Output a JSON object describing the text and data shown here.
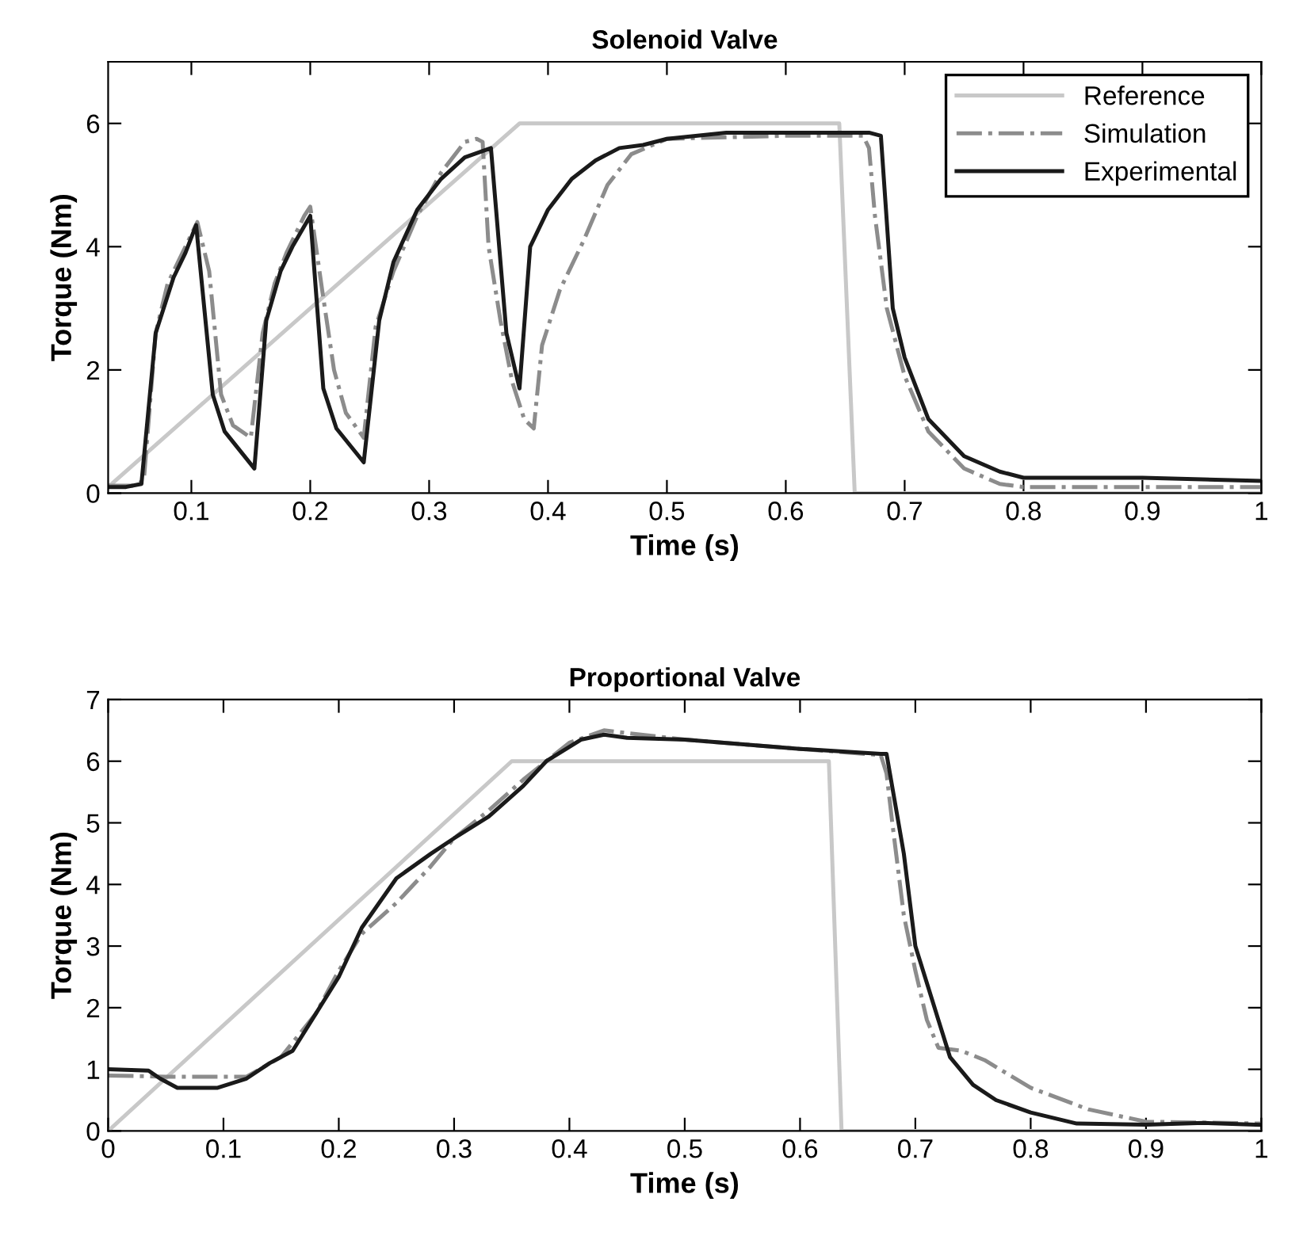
{
  "chart_data": [
    {
      "type": "line",
      "title": "Solenoid Valve",
      "xlabel": "Time (s)",
      "ylabel": "Torque (Nm)",
      "xlim": [
        0.03,
        1
      ],
      "xticks": [
        0.1,
        0.2,
        0.3,
        0.4,
        0.5,
        0.6,
        0.7,
        0.8,
        0.9,
        1
      ],
      "ylim": [
        0,
        7
      ],
      "yticks": [
        0,
        2,
        4,
        6
      ],
      "grid": false,
      "legend": "top right",
      "series": [
        {
          "name": "Reference",
          "color": "#c8c8c8",
          "line_style": "solid",
          "x": [
            0.03,
            0.376,
            0.645,
            0.658,
            1
          ],
          "values": [
            0.1,
            6,
            6,
            0,
            0
          ]
        },
        {
          "name": "Simulation",
          "color": "#8c8c8c",
          "line_style": "dashdot",
          "x": [
            0.03,
            0.05,
            0.06,
            0.07,
            0.08,
            0.09,
            0.1,
            0.105,
            0.115,
            0.12,
            0.125,
            0.135,
            0.15,
            0.16,
            0.17,
            0.18,
            0.195,
            0.2,
            0.21,
            0.22,
            0.23,
            0.245,
            0.255,
            0.27,
            0.29,
            0.31,
            0.33,
            0.34,
            0.345,
            0.35,
            0.36,
            0.37,
            0.38,
            0.388,
            0.395,
            0.41,
            0.43,
            0.45,
            0.47,
            0.5,
            0.6,
            0.665,
            0.67,
            0.675,
            0.685,
            0.7,
            0.72,
            0.75,
            0.78,
            0.8,
            1
          ],
          "values": [
            0.12,
            0.12,
            0.2,
            2.6,
            3.4,
            3.8,
            4.2,
            4.4,
            3.6,
            2.6,
            1.6,
            1.1,
            0.9,
            2.6,
            3.4,
            3.9,
            4.5,
            4.65,
            3.3,
            2.0,
            1.3,
            0.9,
            2.7,
            3.6,
            4.5,
            5.2,
            5.7,
            5.75,
            5.7,
            4.0,
            2.8,
            1.8,
            1.2,
            1.05,
            2.4,
            3.3,
            4.1,
            5.0,
            5.5,
            5.75,
            5.8,
            5.8,
            5.6,
            4.5,
            3.0,
            1.9,
            1.0,
            0.4,
            0.15,
            0.1,
            0.1
          ]
        },
        {
          "name": "Experimental",
          "color": "#1a1a1a",
          "line_style": "solid",
          "x": [
            0.03,
            0.045,
            0.058,
            0.07,
            0.085,
            0.095,
            0.104,
            0.118,
            0.128,
            0.153,
            0.163,
            0.175,
            0.185,
            0.2,
            0.211,
            0.222,
            0.245,
            0.258,
            0.27,
            0.29,
            0.31,
            0.33,
            0.352,
            0.365,
            0.376,
            0.385,
            0.4,
            0.42,
            0.44,
            0.46,
            0.48,
            0.5,
            0.55,
            0.6,
            0.67,
            0.68,
            0.69,
            0.7,
            0.72,
            0.75,
            0.78,
            0.8,
            0.9,
            1
          ],
          "values": [
            0.1,
            0.1,
            0.15,
            2.6,
            3.5,
            3.9,
            4.35,
            1.6,
            1.0,
            0.4,
            2.8,
            3.6,
            4.0,
            4.5,
            1.7,
            1.05,
            0.5,
            2.8,
            3.75,
            4.6,
            5.1,
            5.45,
            5.6,
            2.6,
            1.7,
            4.0,
            4.6,
            5.1,
            5.4,
            5.6,
            5.65,
            5.75,
            5.85,
            5.85,
            5.85,
            5.8,
            3.0,
            2.2,
            1.2,
            0.6,
            0.35,
            0.25,
            0.25,
            0.2
          ]
        }
      ]
    },
    {
      "type": "line",
      "title": "Proportional Valve",
      "xlabel": "Time (s)",
      "ylabel": "Torque (Nm)",
      "xlim": [
        0,
        1
      ],
      "xticks": [
        0,
        0.1,
        0.2,
        0.3,
        0.4,
        0.5,
        0.6,
        0.7,
        0.8,
        0.9,
        1
      ],
      "ylim": [
        0,
        7
      ],
      "yticks": [
        0,
        1,
        2,
        3,
        4,
        5,
        6,
        7
      ],
      "grid": false,
      "series": [
        {
          "color": "#c8c8c8",
          "line_style": "solid",
          "x": [
            0,
            0.35,
            0.625,
            0.636,
            1
          ],
          "values": [
            0,
            6,
            6,
            0,
            0
          ]
        },
        {
          "color": "#8c8c8c",
          "line_style": "dashdot",
          "x": [
            0,
            0.05,
            0.12,
            0.15,
            0.18,
            0.2,
            0.22,
            0.25,
            0.28,
            0.3,
            0.33,
            0.36,
            0.4,
            0.43,
            0.5,
            0.6,
            0.67,
            0.675,
            0.68,
            0.69,
            0.7,
            0.71,
            0.72,
            0.74,
            0.76,
            0.8,
            0.85,
            0.9,
            1
          ],
          "values": [
            0.9,
            0.88,
            0.88,
            1.2,
            1.9,
            2.6,
            3.2,
            3.7,
            4.3,
            4.75,
            5.2,
            5.7,
            6.3,
            6.5,
            6.35,
            6.2,
            6.1,
            5.8,
            5.0,
            3.5,
            2.6,
            1.8,
            1.35,
            1.3,
            1.15,
            0.7,
            0.35,
            0.15,
            0.12
          ]
        },
        {
          "color": "#1a1a1a",
          "line_style": "solid",
          "x": [
            0,
            0.035,
            0.045,
            0.06,
            0.095,
            0.12,
            0.14,
            0.16,
            0.18,
            0.2,
            0.22,
            0.25,
            0.28,
            0.3,
            0.33,
            0.36,
            0.38,
            0.41,
            0.43,
            0.45,
            0.5,
            0.6,
            0.67,
            0.675,
            0.69,
            0.7,
            0.72,
            0.73,
            0.75,
            0.77,
            0.8,
            0.84,
            0.9,
            0.95,
            1
          ],
          "values": [
            1.0,
            0.98,
            0.85,
            0.7,
            0.7,
            0.85,
            1.1,
            1.3,
            1.9,
            2.5,
            3.3,
            4.1,
            4.5,
            4.75,
            5.1,
            5.6,
            6.0,
            6.35,
            6.43,
            6.38,
            6.35,
            6.2,
            6.12,
            6.12,
            4.5,
            3.0,
            1.8,
            1.2,
            0.75,
            0.5,
            0.3,
            0.12,
            0.1,
            0.13,
            0.1
          ]
        }
      ]
    }
  ]
}
